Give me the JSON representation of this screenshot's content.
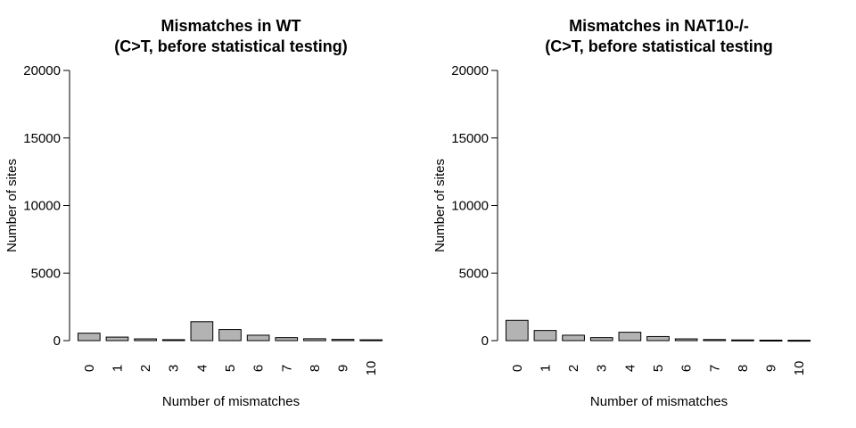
{
  "chart_data": [
    {
      "type": "bar",
      "title_line1": "Mismatches in WT",
      "title_line2": "(C>T, before statistical testing)",
      "xlabel": "Number of mismatches",
      "ylabel": "Number of sites",
      "ylim": [
        0,
        20000
      ],
      "yticks": [
        0,
        5000,
        10000,
        15000,
        20000
      ],
      "categories": [
        "0",
        "1",
        "2",
        "3",
        "4",
        "5",
        "6",
        "7",
        "8",
        "9",
        "10"
      ],
      "values": [
        550,
        260,
        130,
        70,
        1400,
        820,
        400,
        220,
        140,
        90,
        60
      ],
      "bar_color": "#b3b3b3"
    },
    {
      "type": "bar",
      "title_line1": "Mismatches in NAT10-/-",
      "title_line2": "(C>T, before statistical testing",
      "xlabel": "Number of mismatches",
      "ylabel": "Number of sites",
      "ylim": [
        0,
        20000
      ],
      "yticks": [
        0,
        5000,
        10000,
        15000,
        20000
      ],
      "categories": [
        "0",
        "1",
        "2",
        "3",
        "4",
        "5",
        "6",
        "7",
        "8",
        "9",
        "10"
      ],
      "values": [
        1500,
        750,
        400,
        220,
        620,
        300,
        130,
        80,
        50,
        35,
        25
      ],
      "bar_color": "#b3b3b3"
    }
  ]
}
